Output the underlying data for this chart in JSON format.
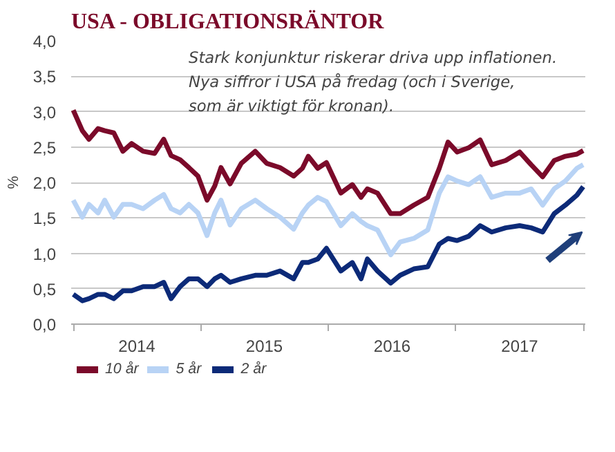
{
  "chart_data": {
    "type": "line",
    "title": "USA - OBLIGATIONSRÄNTOR",
    "ylabel": "%",
    "annotations": [
      "Stark konjunktur riskerar driva upp inflationen.\nNya siffror i USA på fredag (och i Sverige,\nsom är viktigt för kronan)."
    ],
    "x": [
      "2014-01-01",
      "2014-01-27",
      "2014-02-15",
      "2014-03-13",
      "2014-04-01",
      "2014-04-27",
      "2014-05-23",
      "2014-06-17",
      "2014-07-20",
      "2014-08-22",
      "2014-09-17",
      "2014-10-08",
      "2014-11-03",
      "2014-11-28",
      "2014-12-24",
      "2015-01-19",
      "2015-02-10",
      "2015-02-28",
      "2015-03-26",
      "2015-04-27",
      "2015-06-06",
      "2015-07-09",
      "2015-08-16",
      "2015-09-24",
      "2015-10-19",
      "2015-11-05",
      "2015-12-02",
      "2015-12-27",
      "2016-02-06",
      "2016-03-10",
      "2016-04-04",
      "2016-04-22",
      "2016-05-21",
      "2016-06-28",
      "2016-07-25",
      "2016-09-02",
      "2016-10-12",
      "2016-11-14",
      "2016-12-09",
      "2017-01-04",
      "2017-02-06",
      "2017-03-11",
      "2017-04-13",
      "2017-05-23",
      "2017-07-02",
      "2017-08-04",
      "2017-09-06",
      "2017-10-09",
      "2017-11-10",
      "2017-12-13",
      "2017-12-31"
    ],
    "series": [
      {
        "name": "10 år",
        "color": "#7b0a2a",
        "values": [
          3.02,
          2.73,
          2.61,
          2.76,
          2.73,
          2.7,
          2.44,
          2.55,
          2.44,
          2.41,
          2.61,
          2.38,
          2.32,
          2.21,
          2.09,
          1.75,
          1.95,
          2.21,
          1.98,
          2.27,
          2.44,
          2.27,
          2.21,
          2.09,
          2.2,
          2.37,
          2.2,
          2.28,
          1.85,
          1.97,
          1.79,
          1.91,
          1.85,
          1.56,
          1.56,
          1.68,
          1.79,
          2.2,
          2.57,
          2.43,
          2.49,
          2.6,
          2.25,
          2.31,
          2.43,
          2.25,
          2.08,
          2.31,
          2.37,
          2.4,
          2.45
        ]
      },
      {
        "name": "5 år",
        "color": "#b8d3f5",
        "values": [
          1.75,
          1.51,
          1.69,
          1.57,
          1.75,
          1.51,
          1.69,
          1.69,
          1.63,
          1.75,
          1.83,
          1.63,
          1.57,
          1.69,
          1.57,
          1.25,
          1.57,
          1.75,
          1.4,
          1.63,
          1.75,
          1.63,
          1.51,
          1.34,
          1.57,
          1.68,
          1.79,
          1.73,
          1.39,
          1.56,
          1.45,
          1.39,
          1.33,
          0.98,
          1.16,
          1.21,
          1.33,
          1.85,
          2.08,
          2.02,
          1.97,
          2.08,
          1.79,
          1.85,
          1.85,
          1.91,
          1.68,
          1.91,
          2.02,
          2.2,
          2.25
        ]
      },
      {
        "name": "2 år",
        "color": "#0c2a78",
        "values": [
          0.42,
          0.33,
          0.36,
          0.42,
          0.42,
          0.36,
          0.47,
          0.47,
          0.53,
          0.53,
          0.59,
          0.36,
          0.53,
          0.64,
          0.64,
          0.53,
          0.64,
          0.69,
          0.59,
          0.64,
          0.69,
          0.69,
          0.75,
          0.64,
          0.87,
          0.87,
          0.92,
          1.07,
          0.75,
          0.87,
          0.64,
          0.92,
          0.75,
          0.58,
          0.69,
          0.78,
          0.81,
          1.13,
          1.21,
          1.18,
          1.24,
          1.39,
          1.3,
          1.36,
          1.39,
          1.36,
          1.3,
          1.56,
          1.68,
          1.82,
          1.94
        ]
      }
    ],
    "xlim": [
      "2013-12-26",
      "2018-01-06"
    ],
    "xticks": [
      {
        "value": "2014-01-01",
        "label": null
      },
      {
        "value": "2014-07-02",
        "label": "2014"
      },
      {
        "value": "2015-01-01",
        "label": null
      },
      {
        "value": "2015-07-02",
        "label": "2015"
      },
      {
        "value": "2016-01-01",
        "label": null
      },
      {
        "value": "2016-07-02",
        "label": "2016"
      },
      {
        "value": "2017-01-01",
        "label": null
      },
      {
        "value": "2017-07-02",
        "label": "2017"
      },
      {
        "value": "2018-01-01",
        "label": null
      }
    ],
    "ylim": [
      0,
      4
    ],
    "yticks": [
      {
        "value": 0,
        "label": "0,0"
      },
      {
        "value": 0.5,
        "label": "0,5"
      },
      {
        "value": 1,
        "label": "1,0"
      },
      {
        "value": 1.5,
        "label": "1,5"
      },
      {
        "value": 2,
        "label": "2,0"
      },
      {
        "value": 2.5,
        "label": "2,5"
      },
      {
        "value": 3,
        "label": "3,0"
      },
      {
        "value": 3.5,
        "label": "3,5"
      },
      {
        "value": 4,
        "label": "4,0"
      }
    ],
    "grid": "y",
    "legend": "bottom",
    "line_style": "solid",
    "marker": "none"
  }
}
